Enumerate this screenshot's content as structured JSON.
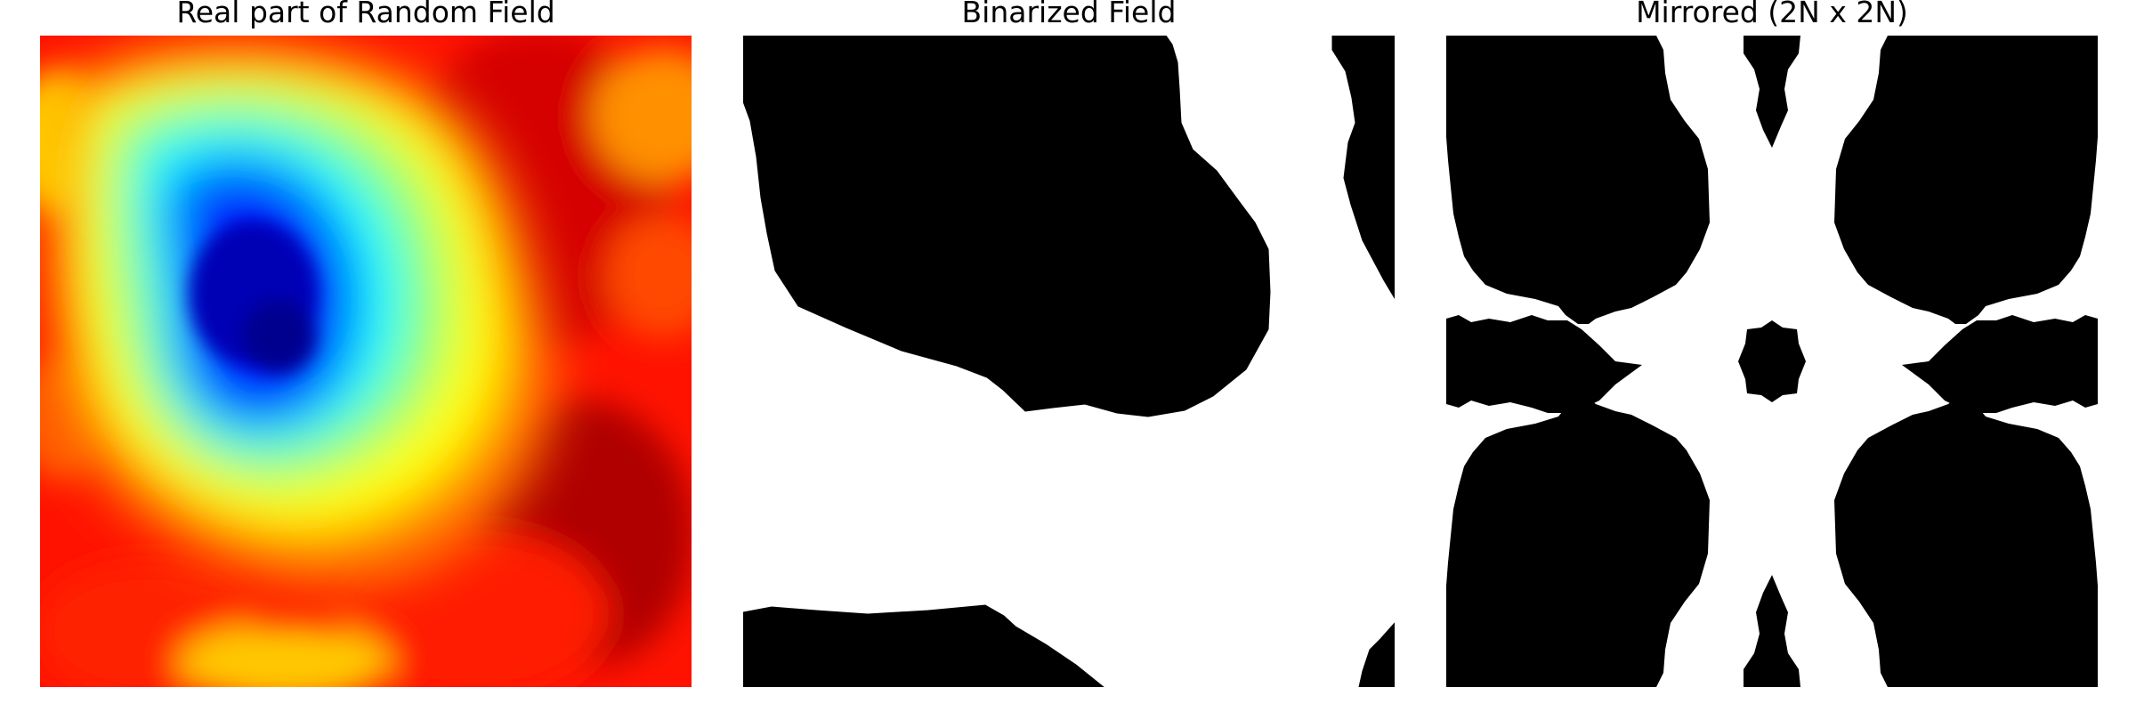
{
  "figure": {
    "panels": [
      {
        "title": "Real part of Random Field",
        "colormap": "jet"
      },
      {
        "title": "Binarized Field",
        "colormap": "binary"
      },
      {
        "title": "Mirrored (2N x 2N)",
        "colormap": "binary"
      }
    ]
  },
  "colors": {
    "background": "#ffffff",
    "black": "#000000",
    "jet_dark_blue": "#00008f",
    "jet_blue": "#0000ff",
    "jet_cyan": "#00ffff",
    "jet_yellow": "#ffff00",
    "jet_red": "#ff0000",
    "jet_dark_red": "#800000"
  }
}
